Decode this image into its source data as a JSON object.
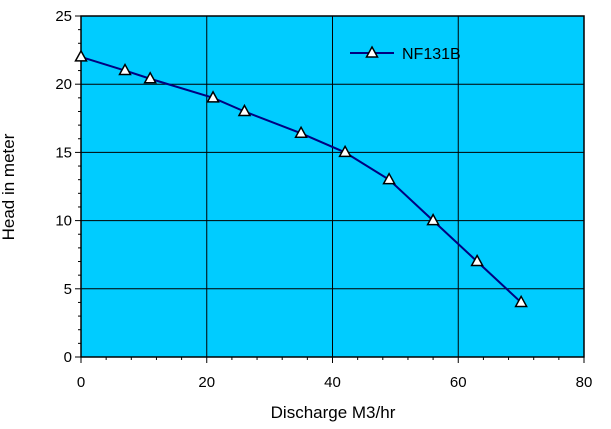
{
  "chart_data": {
    "type": "line",
    "title": "",
    "xlabel": "Discharge M3/hr",
    "ylabel": "Head in meter",
    "xlim": [
      0,
      80
    ],
    "ylim": [
      0,
      25
    ],
    "x_ticks": [
      0,
      20,
      40,
      60,
      80
    ],
    "y_ticks": [
      0,
      5,
      10,
      15,
      20,
      25
    ],
    "grid": true,
    "legend_position": "top-right",
    "series": [
      {
        "name": "NF131B",
        "x": [
          0,
          7,
          11,
          21,
          26,
          35,
          42,
          49,
          56,
          63,
          70
        ],
        "y": [
          22,
          21,
          20.4,
          19,
          18,
          16.4,
          15,
          13,
          10,
          7,
          4
        ],
        "marker": "triangle"
      }
    ]
  },
  "colors": {
    "plot_background": "#00ccff",
    "line": "#000080",
    "marker_fill": "#ffffff",
    "marker_stroke": "#000000",
    "grid": "#000000"
  }
}
